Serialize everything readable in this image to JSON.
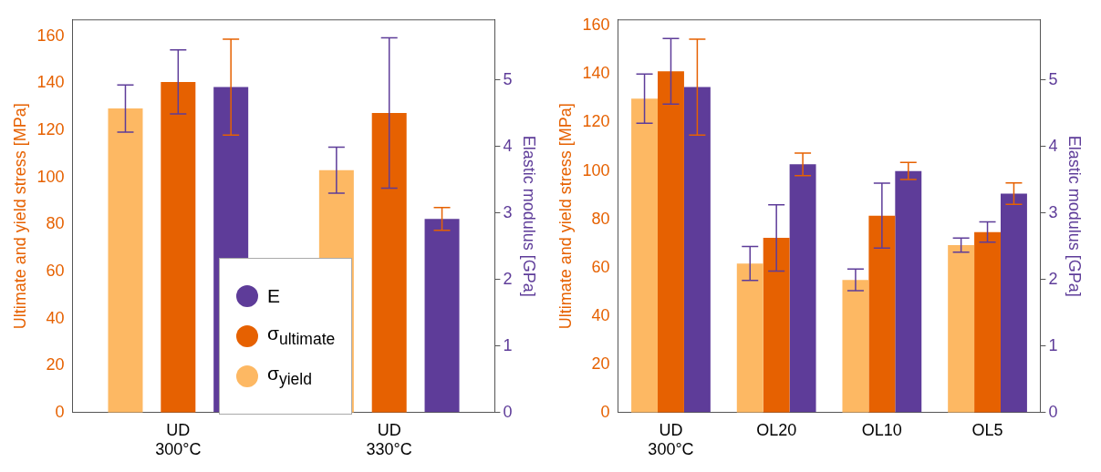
{
  "chart_data": [
    {
      "type": "bar",
      "ylabel": "Ultimate and yield stress [MPa]",
      "y2label": "Elastic modulus [GPa]",
      "categories": [
        "UD 300°C",
        "UD 330°C"
      ],
      "ylim": [
        0,
        167
      ],
      "yticks": [
        0,
        20,
        40,
        60,
        80,
        100,
        120,
        140,
        160
      ],
      "y2lim": [
        0,
        5.9
      ],
      "y2ticks": [
        0,
        1,
        2,
        3,
        4,
        5
      ],
      "grid": false,
      "legend": "bottom",
      "series": [
        {
          "name": "σ$_{yield}$",
          "color": "#fdb863",
          "values": [
            129.3,
            103.1
          ],
          "errors": [
            10,
            9.8
          ]
        },
        {
          "name": "σ$_{ultimate}$",
          "color": "#e66101",
          "values": [
            140.6,
            127.4
          ],
          "errors": [
            13.6,
            32
          ]
        },
        {
          "name": "E",
          "color": "#5e3c99",
          "axis": "y2",
          "values": [
            4.89,
            2.91
          ],
          "errors": [
            0.72,
            0.17
          ]
        }
      ]
    },
    {
      "type": "bar",
      "ylabel": "Ultimate and yield stress [MPa]",
      "y2label": "Elastic modulus [GPa]",
      "categories": [
        "UD 300°C",
        "OL20",
        "OL10",
        "OL5"
      ],
      "ylim": [
        0,
        162.5
      ],
      "yticks": [
        0,
        20,
        40,
        60,
        80,
        100,
        120,
        140,
        160
      ],
      "y2lim": [
        0,
        5.9
      ],
      "y2ticks": [
        0,
        1,
        2,
        3,
        4,
        5
      ],
      "grid": false,
      "legend": false,
      "series": [
        {
          "color": "#fdb863",
          "values": [
            129.9,
            61.7,
            54.9,
            69.3
          ],
          "errors": [
            10.2,
            7,
            4.5,
            2.9
          ]
        },
        {
          "color": "#e66101",
          "values": [
            141.2,
            72.3,
            81.5,
            74.7
          ],
          "errors": [
            13.6,
            13.7,
            13.4,
            4.2
          ]
        },
        {
          "color": "#5e3c99",
          "axis": "y2",
          "values": [
            4.89,
            3.73,
            3.63,
            3.29
          ],
          "errors": [
            0.72,
            0.17,
            0.13,
            0.16
          ]
        }
      ]
    }
  ]
}
